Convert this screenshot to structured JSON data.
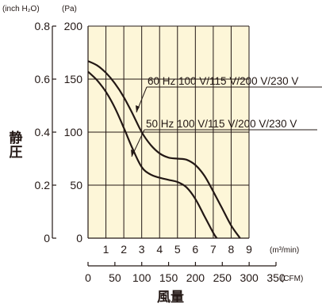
{
  "chart_data": {
    "type": "line",
    "units": {
      "inch_h2o": "(inch H₂O)",
      "pa": "(Pa)",
      "m3min": "(m³/min)",
      "cfm": "(CFM)"
    },
    "ylabel": "静圧",
    "xlabel": "風量",
    "ylim": [
      0,
      200
    ],
    "xlim": [
      0,
      9
    ],
    "y_ticks_pa": [
      "0",
      "50",
      "100",
      "150",
      "200"
    ],
    "y_ticks_inch": [
      "0",
      "0.2",
      "0.4",
      "0.6",
      "0.8"
    ],
    "x_ticks_m3min": [
      "1",
      "2",
      "3",
      "4",
      "5",
      "6",
      "7",
      "8",
      "9"
    ],
    "x_ticks_cfm": [
      "0",
      "50",
      "100",
      "150",
      "200",
      "250",
      "300",
      "350"
    ],
    "grid": true,
    "plot_background": "#fdf6d8",
    "series": [
      {
        "name": "60 Hz 100 V/115 V/200 V/230 V",
        "x": [
          0,
          0.5,
          1,
          1.5,
          2,
          2.5,
          3,
          3.5,
          4,
          4.5,
          5,
          5.5,
          6,
          6.5,
          7,
          7.5,
          8,
          8.5
        ],
        "y": [
          167,
          163,
          156,
          146,
          133,
          117,
          100,
          88,
          80,
          76,
          75,
          74,
          69,
          59,
          44,
          28,
          12,
          0
        ]
      },
      {
        "name": "50 Hz 100 V/115 V/200 V/230 V",
        "x": [
          0,
          0.5,
          1,
          1.5,
          2,
          2.5,
          3,
          3.5,
          4,
          4.5,
          5,
          5.5,
          6,
          6.5,
          7,
          7.2
        ],
        "y": [
          157,
          149,
          138,
          123,
          104,
          84,
          67,
          60,
          57,
          55,
          53,
          48,
          37,
          21,
          5,
          0
        ]
      }
    ]
  }
}
